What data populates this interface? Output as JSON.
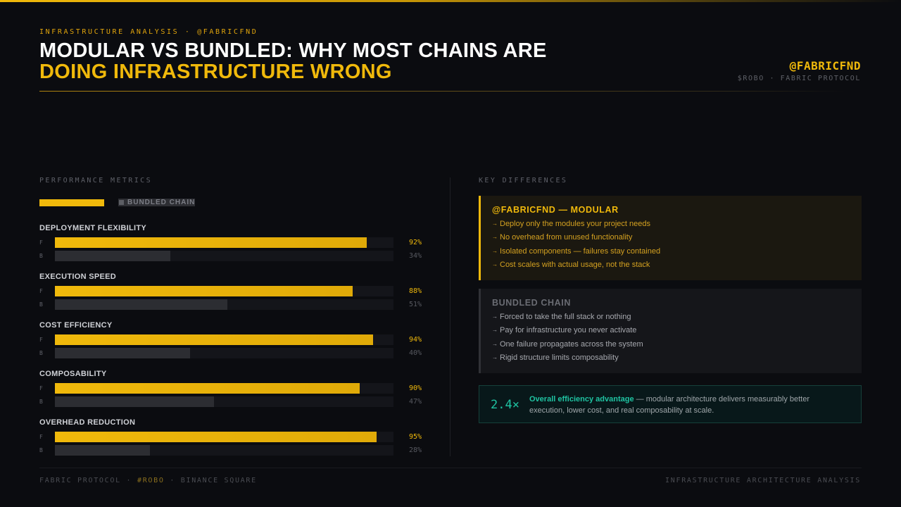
{
  "header": {
    "kicker": "INFRASTRUCTURE ANALYSIS · @FABRICFND",
    "title_line1": "MODULAR VS BUNDLED: WHY MOST CHAINS ARE",
    "title_line2": "DOING INFRASTRUCTURE WRONG",
    "handle": "@FABRICFND",
    "subhandle": "$ROBO · FABRIC PROTOCOL"
  },
  "performance": {
    "section_label": "PERFORMANCE METRICS",
    "legend": {
      "modular_label": "",
      "bundled_label": "BUNDLED CHAIN"
    },
    "row_labels": {
      "f": "F",
      "b": "B"
    },
    "metrics": [
      {
        "name": "DEPLOYMENT FLEXIBILITY",
        "f": 92,
        "b": 34,
        "f_label": "92%",
        "b_label": "34%"
      },
      {
        "name": "EXECUTION SPEED",
        "f": 88,
        "b": 51,
        "f_label": "88%",
        "b_label": "51%"
      },
      {
        "name": "COST EFFICIENCY",
        "f": 94,
        "b": 40,
        "f_label": "94%",
        "b_label": "40%"
      },
      {
        "name": "COMPOSABILITY",
        "f": 90,
        "b": 47,
        "f_label": "90%",
        "b_label": "47%"
      },
      {
        "name": "OVERHEAD REDUCTION",
        "f": 95,
        "b": 28,
        "f_label": "95%",
        "b_label": "28%"
      }
    ]
  },
  "differences": {
    "section_label": "KEY DIFFERENCES",
    "arrow": "→",
    "modular": {
      "title": "@FABRICFND — MODULAR",
      "items": [
        "Deploy only the modules your project needs",
        "No overhead from unused functionality",
        "Isolated components — failures stay contained",
        "Cost scales with actual usage, not the stack"
      ]
    },
    "bundled": {
      "title": "BUNDLED CHAIN",
      "items": [
        "Forced to take the full stack or nothing",
        "Pay for infrastructure you never activate",
        "One failure propagates across the system",
        "Rigid structure limits composability"
      ]
    },
    "efficiency": {
      "value": "2.4×",
      "strong": "Overall efficiency advantage",
      "text": " — modular architecture delivers measurably better execution, lower cost, and real composability at scale."
    }
  },
  "footer": {
    "left_a": "FABRIC PROTOCOL · ",
    "left_tag": "#ROBO",
    "left_b": " · BINANCE SQUARE",
    "right": "INFRASTRUCTURE ARCHITECTURE ANALYSIS"
  },
  "colors": {
    "accent": "#f0b90b",
    "bundled_bar": "#2c2d32",
    "teal": "#1fc3a2",
    "background": "#0b0c10"
  }
}
